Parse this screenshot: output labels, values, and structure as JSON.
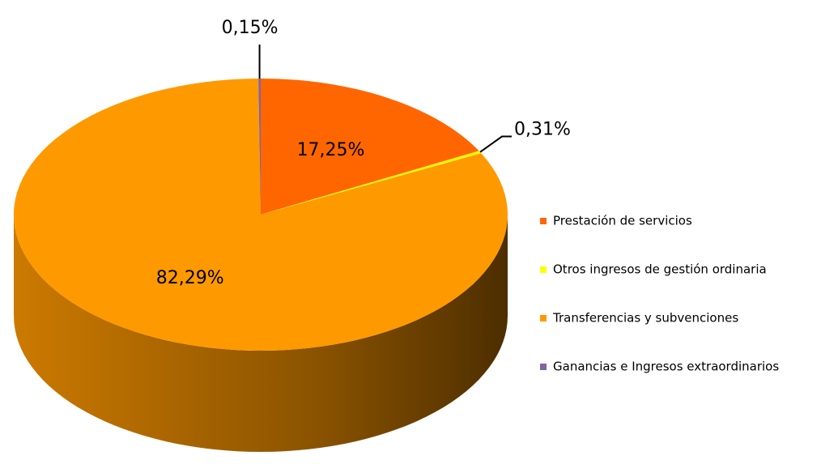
{
  "chart_data": {
    "type": "pie",
    "categories": [
      "Prestación de servicios",
      "Otros ingresos de gestión ordinaria",
      "Transferencias y subvenciones",
      "Ganancias e Ingresos extraordinarios"
    ],
    "values": [
      17.25,
      0.31,
      82.29,
      0.15
    ],
    "value_labels": [
      "17,25%",
      "0,31%",
      "82,29%",
      "0,15%"
    ],
    "colors": [
      "#ff6600",
      "#ffff00",
      "#ff9900",
      "#8064a2"
    ],
    "legend": "right"
  }
}
